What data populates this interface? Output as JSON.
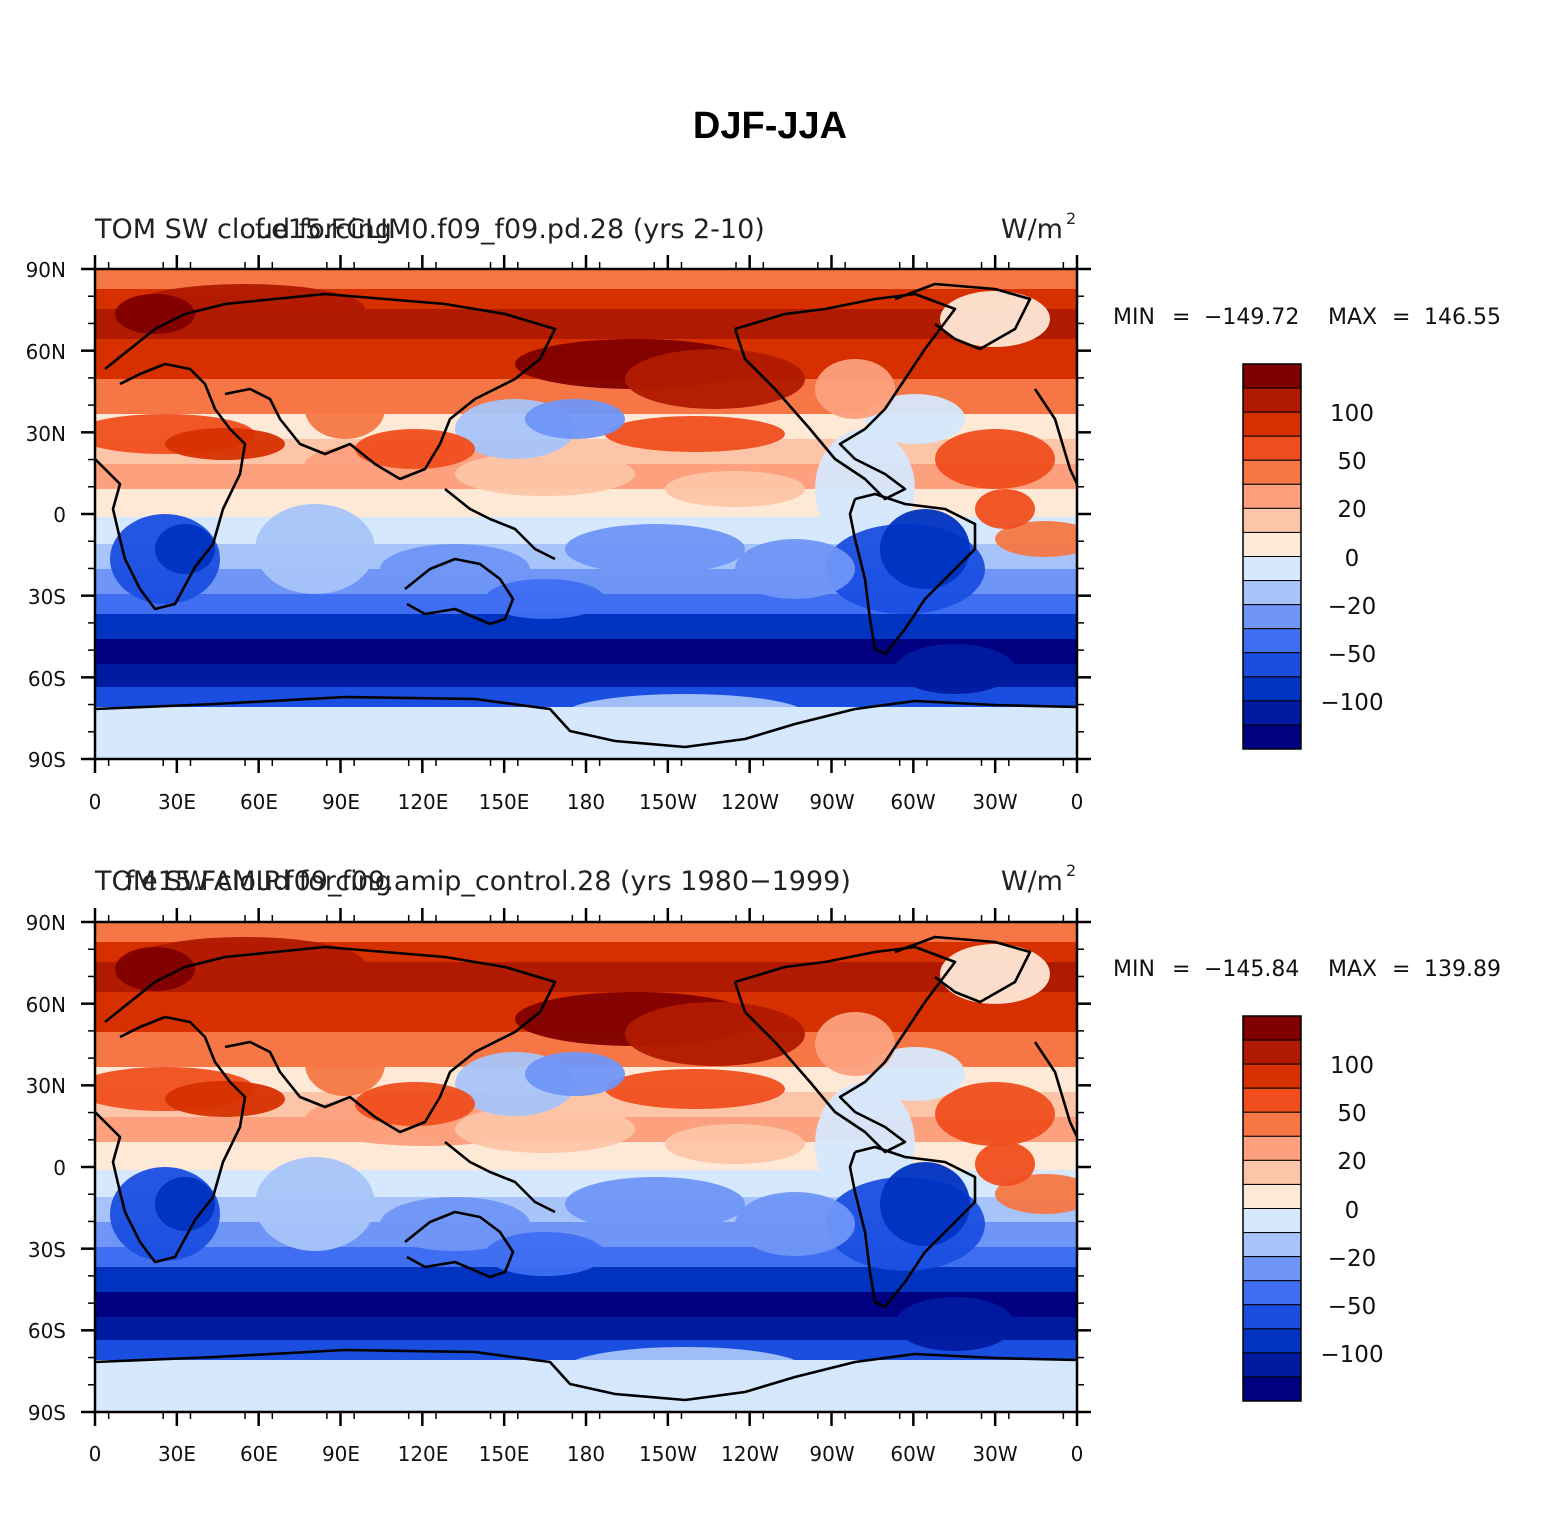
{
  "figure": {
    "title": "DJF-JJA"
  },
  "colors": {
    "levels": [
      "#000080",
      "#001aa0",
      "#0033c0",
      "#1a4ee0",
      "#3f6ef2",
      "#6f96f7",
      "#a6c4f9",
      "#d6e8fd",
      "#fee8d6",
      "#fdc5a8",
      "#fca07d",
      "#f67745",
      "#f04e1e",
      "#d73000",
      "#b01a00",
      "#7f0000"
    ]
  },
  "panels": [
    {
      "case_label": "f.e15.FCLIM0.f09_f09.pd.28 (yrs 2-10)",
      "variable_label": "TOM SW cloud forcing",
      "units": "W/m",
      "units_sup": "2",
      "min_label": "MIN",
      "min_value": "−149.72",
      "max_label": "MAX",
      "max_value": "146.55"
    },
    {
      "case_label": "f.e15.FAMIP.f09_f09.amip_control.28 (yrs 1980−1999)",
      "variable_label": "TOM SW cloud forcing",
      "units": "W/m",
      "units_sup": "2",
      "min_label": "MIN",
      "min_value": "−145.84",
      "max_label": "MAX",
      "max_value": "139.89"
    }
  ],
  "axes": {
    "lat_ticks": [
      "90N",
      "60N",
      "30N",
      "0",
      "30S",
      "60S",
      "90S"
    ],
    "lon_ticks": [
      "0",
      "30E",
      "60E",
      "90E",
      "120E",
      "150E",
      "180",
      "150W",
      "120W",
      "90W",
      "60W",
      "30W",
      "0"
    ]
  },
  "colorbar": {
    "labels": [
      "100",
      "50",
      "20",
      "0",
      "−20",
      "−50",
      "−100"
    ]
  },
  "chart_data": {
    "type": "heatmap",
    "title": "DJF-JJA",
    "x_ticks": [
      "0",
      "30E",
      "60E",
      "90E",
      "120E",
      "150E",
      "180",
      "150W",
      "120W",
      "90W",
      "60W",
      "30W",
      "0"
    ],
    "y_ticks": [
      "90N",
      "60N",
      "30N",
      "0",
      "30S",
      "60S",
      "90S"
    ],
    "colorbar_labels": [
      "100",
      "50",
      "20",
      "0",
      "−20",
      "−50",
      "−100"
    ],
    "panels": [
      {
        "case": "f.e15.FCLIM0.f09_f09.pd.28 (yrs 2-10)",
        "min": -149.72,
        "max": 146.55
      },
      {
        "case": "f.e15.FAMIP.f09_f09.amip_control.28 (yrs 1980−1999)",
        "min": -145.84,
        "max": 139.89
      }
    ]
  }
}
